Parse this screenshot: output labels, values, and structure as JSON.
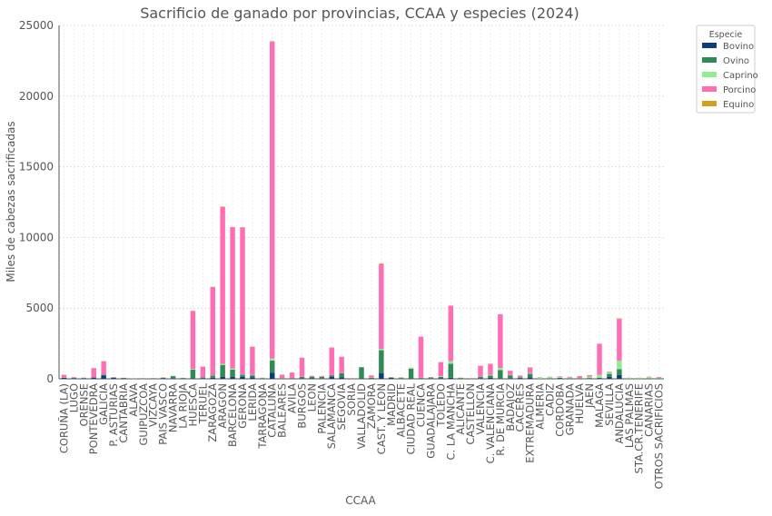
{
  "chart_data": {
    "type": "bar",
    "stacked": true,
    "title": "Sacrificio de ganado por provincias, CCAA y especies (2024)",
    "xlabel": "CCAA",
    "ylabel": "Miles de cabezas sacrificadas",
    "ylim": [
      0,
      25000
    ],
    "yticks": [
      0,
      5000,
      10000,
      15000,
      20000,
      25000
    ],
    "grid": true,
    "legend": {
      "title": "Especie",
      "placement": "outside-top-right"
    },
    "categories": [
      "CORUÑA (LA)",
      "LUGO",
      "ORENSE",
      "PONTEVEDRA",
      "GALICIA",
      "P. ASTURIAS",
      "CANTABRIA",
      "ALAVA",
      "GUIPUZCOA",
      "VIZCAYA",
      "PAIS VASCO",
      "NAVARRA",
      "LA RIOJA",
      "HUESCA",
      "TERUEL",
      "ZARAGOZA",
      "ARAGON",
      "BARCELONA",
      "GERONA",
      "LERIDA",
      "TARRAGONA",
      "CATALUÑA",
      "BALEARES",
      "AVILA",
      "BURGOS",
      "LEON",
      "PALENCIA",
      "SALAMANCA",
      "SEGOVIA",
      "SORIA",
      "VALLADOLID",
      "ZAMORA",
      "CAST. Y LEON",
      "MADRID",
      "ALBACETE",
      "CIUDAD REAL",
      "CUENCA",
      "GUADALAJARA",
      "TOLEDO",
      "C. LA MANCHA",
      "ALICANTE",
      "CASTELLON",
      "VALENCIA",
      "C. VALENCIANA",
      "R. DE MURCIA",
      "BADAJOZ",
      "CACERES",
      "EXTREMADURA",
      "ALMERIA",
      "CADIZ",
      "CORDOBA",
      "GRANADA",
      "HUELVA",
      "JAEN",
      "MALAGA",
      "SEVILLA",
      "ANDALUCIA",
      "LAS PALMAS",
      "STA.CR.TENERIFE",
      "CANARIAS",
      "OTROS SACRIFICIOS"
    ],
    "series": [
      {
        "name": "Bovino",
        "color": "#0b3d7a",
        "values": [
          70,
          50,
          40,
          90,
          250,
          80,
          50,
          10,
          20,
          20,
          50,
          40,
          10,
          50,
          20,
          80,
          150,
          150,
          150,
          100,
          20,
          420,
          10,
          20,
          50,
          30,
          10,
          150,
          100,
          10,
          20,
          20,
          410,
          80,
          10,
          20,
          10,
          5,
          30,
          75,
          10,
          5,
          50,
          65,
          20,
          50,
          60,
          110,
          5,
          20,
          30,
          20,
          10,
          10,
          30,
          150,
          275,
          5,
          5,
          10,
          10
        ]
      },
      {
        "name": "Ovino",
        "color": "#2e8b57",
        "values": [
          10,
          10,
          10,
          10,
          40,
          20,
          10,
          5,
          5,
          10,
          20,
          150,
          50,
          600,
          80,
          150,
          830,
          500,
          150,
          150,
          30,
          880,
          20,
          20,
          80,
          120,
          130,
          100,
          300,
          10,
          800,
          50,
          1610,
          20,
          50,
          700,
          50,
          90,
          100,
          990,
          50,
          20,
          100,
          170,
          600,
          200,
          50,
          250,
          10,
          20,
          40,
          20,
          20,
          50,
          50,
          200,
          410,
          10,
          10,
          20,
          20
        ]
      },
      {
        "name": "Caprino",
        "color": "#90ee90",
        "values": [
          5,
          5,
          5,
          5,
          20,
          5,
          5,
          5,
          5,
          5,
          15,
          10,
          10,
          50,
          10,
          20,
          80,
          80,
          20,
          20,
          20,
          140,
          10,
          5,
          10,
          10,
          10,
          10,
          10,
          10,
          10,
          20,
          95,
          5,
          50,
          50,
          20,
          10,
          50,
          180,
          20,
          10,
          20,
          50,
          150,
          20,
          20,
          40,
          100,
          100,
          50,
          50,
          10,
          100,
          200,
          100,
          600,
          50,
          50,
          100,
          50
        ]
      },
      {
        "name": "Porcino",
        "color": "#ff6eb4",
        "values": [
          200,
          50,
          30,
          650,
          920,
          10,
          10,
          5,
          5,
          5,
          15,
          5,
          5,
          4100,
          750,
          6250,
          11100,
          10000,
          10400,
          2000,
          10,
          22400,
          250,
          400,
          1350,
          50,
          50,
          1950,
          1150,
          10,
          5,
          150,
          6000,
          10,
          10,
          10,
          2900,
          10,
          1000,
          3920,
          10,
          10,
          750,
          770,
          3800,
          300,
          100,
          400,
          10,
          10,
          50,
          50,
          150,
          100,
          2200,
          50,
          2950,
          10,
          10,
          20,
          50
        ]
      },
      {
        "name": "Equino",
        "color": "#d4a017",
        "values": [
          5,
          5,
          5,
          5,
          20,
          5,
          5,
          0,
          5,
          5,
          10,
          5,
          5,
          10,
          10,
          10,
          30,
          10,
          10,
          10,
          5,
          35,
          5,
          5,
          10,
          5,
          5,
          5,
          5,
          5,
          5,
          5,
          45,
          5,
          5,
          5,
          5,
          5,
          5,
          20,
          5,
          5,
          5,
          15,
          5,
          5,
          5,
          10,
          5,
          5,
          5,
          5,
          5,
          5,
          5,
          5,
          35,
          5,
          5,
          5,
          5
        ]
      }
    ]
  }
}
